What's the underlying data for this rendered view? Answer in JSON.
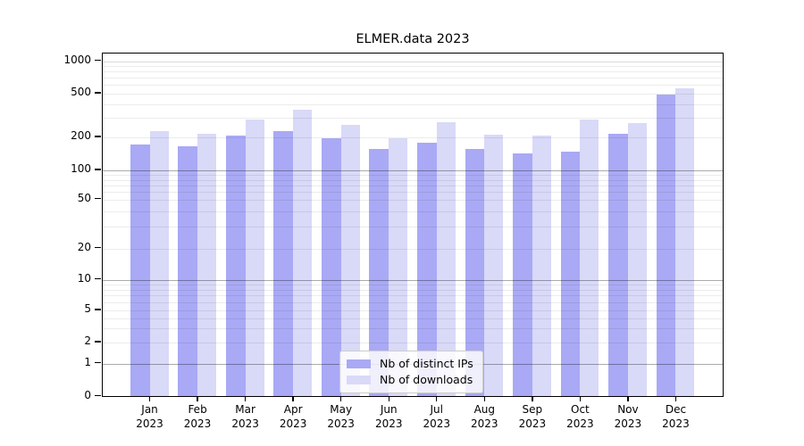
{
  "chart_data": {
    "type": "bar",
    "title": "ELMER.data 2023",
    "categories": [
      "Jan",
      "Feb",
      "Mar",
      "Apr",
      "May",
      "Jun",
      "Jul",
      "Aug",
      "Sep",
      "Oct",
      "Nov",
      "Dec"
    ],
    "x_year_label": "2023",
    "series": [
      {
        "name": "Nb of distinct IPs",
        "color": "#a9a9f5",
        "values": [
          170,
          163,
          204,
          224,
          192,
          153,
          176,
          153,
          139,
          146,
          211,
          480
        ]
      },
      {
        "name": "Nb of downloads",
        "color": "#d9d9f8",
        "values": [
          225,
          213,
          287,
          350,
          256,
          192,
          270,
          209,
          205,
          285,
          266,
          553
        ]
      }
    ],
    "yscale": "symlog",
    "y_ticks": [
      0,
      1,
      2,
      5,
      10,
      20,
      50,
      100,
      200,
      500,
      1000
    ],
    "y_tick_labels": [
      "0",
      "1",
      "2",
      "5",
      "10",
      "20",
      "50",
      "100",
      "200",
      "500",
      "1000"
    ],
    "ylim": [
      0,
      1150
    ],
    "xlabel": "",
    "ylabel": "",
    "grid": "on",
    "legend": {
      "position": "lower center",
      "entries": [
        "Nb of distinct IPs",
        "Nb of downloads"
      ]
    }
  },
  "colors": {
    "bar_distinct_ips": "#a9a9f5",
    "bar_downloads": "#d9d9f8",
    "grid_minor": "rgba(0,0,0,0.075)",
    "grid_major": "rgba(0,0,0,0.33)",
    "grid_1000": "rgba(0,0,0,0.15)",
    "axis": "#000000",
    "background": "#ffffff"
  }
}
